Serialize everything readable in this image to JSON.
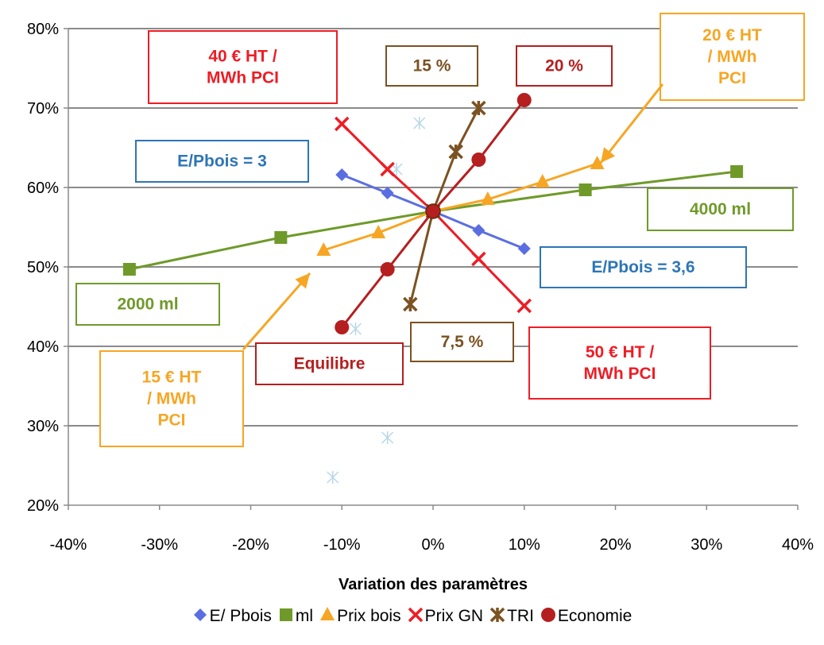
{
  "chart_data": {
    "type": "line",
    "xlabel": "Variation des paramètres",
    "ylabel": "",
    "xlim": [
      -0.4,
      0.4
    ],
    "ylim": [
      0.2,
      0.8
    ],
    "x_ticks": [
      -0.4,
      -0.3,
      -0.2,
      -0.1,
      0,
      0.1,
      0.2,
      0.3,
      0.4
    ],
    "x_tick_labels": [
      "-40%",
      "-30%",
      "-20%",
      "-10%",
      "0%",
      "10%",
      "20%",
      "30%",
      "40%"
    ],
    "y_ticks": [
      0.2,
      0.3,
      0.4,
      0.5,
      0.6,
      0.7,
      0.8
    ],
    "y_tick_labels": [
      "20%",
      "30%",
      "40%",
      "50%",
      "60%",
      "70%",
      "80%"
    ],
    "grid": "horizontal",
    "legend_position": "bottom",
    "series": [
      {
        "name": "E/ Pbois",
        "marker": "diamond",
        "color": "#5b6ee1",
        "points": [
          [
            -0.1,
            0.616
          ],
          [
            -0.05,
            0.593
          ],
          [
            0,
            0.57
          ],
          [
            0.05,
            0.546
          ],
          [
            0.1,
            0.523
          ]
        ]
      },
      {
        "name": "ml",
        "marker": "square",
        "color": "#6f9a2a",
        "points": [
          [
            -0.333,
            0.497
          ],
          [
            -0.167,
            0.537
          ],
          [
            0,
            0.57
          ],
          [
            0.167,
            0.597
          ],
          [
            0.333,
            0.62
          ]
        ]
      },
      {
        "name": "Prix bois",
        "marker": "triangle",
        "color": "#f6a624",
        "points": [
          [
            -0.12,
            0.521
          ],
          [
            -0.06,
            0.543
          ],
          [
            0,
            0.57
          ],
          [
            0.06,
            0.585
          ],
          [
            0.12,
            0.607
          ],
          [
            0.18,
            0.63
          ]
        ]
      },
      {
        "name": "Prix GN",
        "marker": "x",
        "color": "#ee1c25",
        "points": [
          [
            -0.1,
            0.68
          ],
          [
            -0.05,
            0.623
          ],
          [
            0,
            0.57
          ],
          [
            0.05,
            0.51
          ],
          [
            0.1,
            0.451
          ]
        ]
      },
      {
        "name": "TRI",
        "marker": "star",
        "color": "#7b5221",
        "points": [
          [
            -0.025,
            0.453
          ],
          [
            0,
            0.57
          ],
          [
            0.025,
            0.645
          ],
          [
            0.05,
            0.7
          ]
        ]
      },
      {
        "name": "Economie",
        "marker": "circle",
        "color": "#b51f1f",
        "points": [
          [
            -0.1,
            0.424
          ],
          [
            -0.05,
            0.497
          ],
          [
            0,
            0.57
          ],
          [
            0.05,
            0.635
          ],
          [
            0.1,
            0.71
          ]
        ]
      }
    ],
    "faint_points": [
      [
        -0.04,
        0.623
      ],
      [
        -0.015,
        0.681
      ],
      [
        -0.085,
        0.422
      ],
      [
        -0.11,
        0.235
      ],
      [
        -0.05,
        0.285
      ]
    ],
    "annotations": [
      {
        "lines": [
          "40 € HT /",
          "MWh PCI"
        ],
        "color": "#ee1c25"
      },
      {
        "lines": [
          "15 %"
        ],
        "color": "#7b5221"
      },
      {
        "lines": [
          "20 %"
        ],
        "color": "#b51f1f"
      },
      {
        "lines": [
          "20 € HT",
          "/ MWh",
          "PCI"
        ],
        "color": "#f6a624"
      },
      {
        "lines": [
          "E/Pbois = 3"
        ],
        "color": "#2e75b6"
      },
      {
        "lines": [
          "4000 ml"
        ],
        "color": "#6f9a2a"
      },
      {
        "lines": [
          "E/Pbois = 3,6"
        ],
        "color": "#2e75b6"
      },
      {
        "lines": [
          "2000 ml"
        ],
        "color": "#6f9a2a"
      },
      {
        "lines": [
          "7,5 %"
        ],
        "color": "#7b5221"
      },
      {
        "lines": [
          "15 € HT",
          "/ MWh",
          "PCI"
        ],
        "color": "#f6a624"
      },
      {
        "lines": [
          "Equilibre"
        ],
        "color": "#b51f1f"
      },
      {
        "lines": [
          "50 € HT /",
          "MWh PCI"
        ],
        "color": "#ee1c25"
      }
    ]
  }
}
